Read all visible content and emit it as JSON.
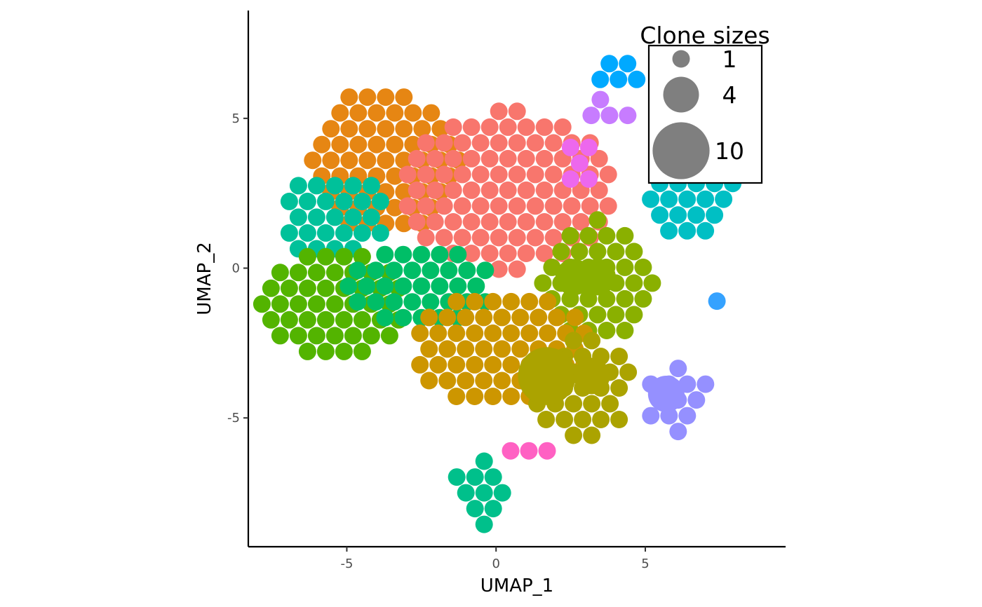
{
  "chart_data": {
    "type": "scatter",
    "xlabel": "UMAP_1",
    "ylabel": "UMAP_2",
    "xlim": [
      -8.3,
      9.7
    ],
    "ylim": [
      -9.3,
      8.6
    ],
    "x_ticks": [
      -5,
      0,
      5
    ],
    "y_ticks": [
      -5,
      0,
      5
    ],
    "x_tick_labels": [
      "-5",
      "0",
      "5"
    ],
    "y_tick_labels": [
      "-5",
      "0",
      "5"
    ],
    "grid": false,
    "legend": {
      "title": "Clone sizes",
      "placement": "top-right",
      "entries": [
        {
          "label": "1",
          "size": 1
        },
        {
          "label": "4",
          "size": 4
        },
        {
          "label": "10",
          "size": 10
        }
      ]
    },
    "clusters": [
      {
        "color": "#E68613",
        "center": [
          -3.7,
          3.6
        ],
        "rx": 2.6,
        "ry": 2.3,
        "n": 60
      },
      {
        "color": "#F8766D",
        "center": [
          0.4,
          2.6
        ],
        "rx": 2.8,
        "ry": 2.1,
        "n": 95
      },
      {
        "color": "#00C19A",
        "center": [
          -5.4,
          1.7
        ],
        "rx": 1.3,
        "ry": 1.2,
        "n": 26
      },
      {
        "color": "#53B400",
        "center": [
          -5.4,
          -1.2
        ],
        "rx": 1.9,
        "ry": 1.5,
        "n": 46
      },
      {
        "color": "#00BE67",
        "center": [
          -2.5,
          -0.6
        ],
        "rx": 1.7,
        "ry": 1.1,
        "n": 34
      },
      {
        "color": "#8AB000",
        "center": [
          3.4,
          -0.5
        ],
        "rx": 1.6,
        "ry": 1.8,
        "n": 38
      },
      {
        "color": "#CD9600",
        "center": [
          0.2,
          -2.7
        ],
        "rx": 2.5,
        "ry": 1.8,
        "n": 58
      },
      {
        "color": "#ABA300",
        "center": [
          2.9,
          -4.0
        ],
        "rx": 1.6,
        "ry": 1.7,
        "n": 30
      },
      {
        "color": "#00A9FF",
        "center": [
          4.1,
          6.3
        ],
        "rx": 0.6,
        "ry": 0.4,
        "n": 5
      },
      {
        "color": "#ED68ED",
        "center": [
          2.8,
          3.5
        ],
        "rx": 0.5,
        "ry": 0.5,
        "n": 5
      },
      {
        "color": "#C77CFF",
        "center": [
          3.8,
          5.1
        ],
        "rx": 0.4,
        "ry": 0.3,
        "n": 4
      },
      {
        "color": "#00BFC4",
        "center": [
          6.4,
          2.3
        ],
        "rx": 1.2,
        "ry": 0.9,
        "n": 20
      },
      {
        "color": "#35A2FF",
        "center": [
          7.4,
          -1.1
        ],
        "rx": 0,
        "ry": 0,
        "n": 1
      },
      {
        "color": "#9590FF",
        "center": [
          6.1,
          -4.4
        ],
        "rx": 0.8,
        "ry": 0.8,
        "n": 12
      },
      {
        "color": "#FF61C3",
        "center": [
          1.1,
          -6.1
        ],
        "rx": 0.4,
        "ry": 0.3,
        "n": 3
      },
      {
        "color": "#00C08B",
        "center": [
          -0.4,
          -7.5
        ],
        "rx": 0.7,
        "ry": 0.7,
        "n": 10
      }
    ],
    "large_points": [
      {
        "x": 1.7,
        "y": -3.6,
        "size": 10,
        "color": "#ABA300"
      },
      {
        "x": 3.2,
        "y": -3.6,
        "size": 4,
        "color": "#ABA300"
      },
      {
        "x": 2.6,
        "y": -0.3,
        "size": 4,
        "color": "#8AB000"
      },
      {
        "x": 3.4,
        "y": -0.3,
        "size": 4,
        "color": "#8AB000"
      },
      {
        "x": 5.7,
        "y": -4.2,
        "size": 4,
        "color": "#9590FF"
      }
    ]
  }
}
